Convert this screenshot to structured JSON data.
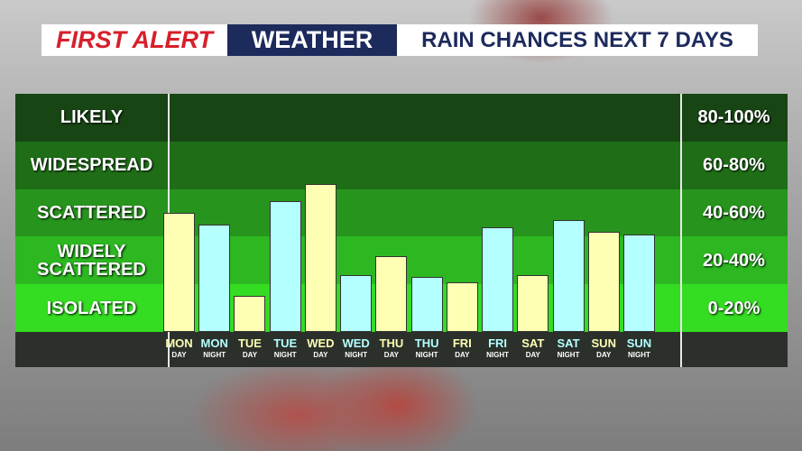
{
  "chart_data": {
    "type": "bar",
    "title": {
      "brand": "FIRST ALERT",
      "section": "WEATHER",
      "topic": "RAIN CHANCES NEXT 7 DAYS"
    },
    "categories": [
      [
        "MON",
        "DAY"
      ],
      [
        "MON",
        "NIGHT"
      ],
      [
        "TUE",
        "DAY"
      ],
      [
        "TUE",
        "NIGHT"
      ],
      [
        "WED",
        "DAY"
      ],
      [
        "WED",
        "NIGHT"
      ],
      [
        "THU",
        "DAY"
      ],
      [
        "THU",
        "NIGHT"
      ],
      [
        "FRI",
        "DAY"
      ],
      [
        "FRI",
        "NIGHT"
      ],
      [
        "SAT",
        "DAY"
      ],
      [
        "SAT",
        "NIGHT"
      ],
      [
        "SUN",
        "DAY"
      ],
      [
        "SUN",
        "NIGHT"
      ]
    ],
    "values": [
      50,
      45,
      15,
      55,
      62,
      24,
      32,
      23,
      21,
      44,
      24,
      47,
      42,
      41
    ],
    "colors": [
      "#ffffb4",
      "#b4ffff",
      "#ffffb4",
      "#b4ffff",
      "#ffffb4",
      "#b4ffff",
      "#ffffb4",
      "#b4ffff",
      "#ffffb4",
      "#b4ffff",
      "#ffffb4",
      "#b4ffff",
      "#ffffb4",
      "#b4ffff"
    ],
    "ylim": [
      0,
      100
    ],
    "bands": [
      {
        "label": "LIKELY",
        "range": "80-100%",
        "from": 80,
        "to": 100,
        "color": "#184514"
      },
      {
        "label": "WIDESPREAD",
        "range": "60-80%",
        "from": 60,
        "to": 80,
        "color": "#1f6e17"
      },
      {
        "label": "SCATTERED",
        "range": "40-60%",
        "from": 40,
        "to": 60,
        "color": "#27951d"
      },
      {
        "label": "WIDELY SCATTERED",
        "range": "20-40%",
        "from": 20,
        "to": 40,
        "color": "#2db821"
      },
      {
        "label": "ISOLATED",
        "range": "0-20%",
        "from": 0,
        "to": 20,
        "color": "#34dc22"
      }
    ]
  }
}
